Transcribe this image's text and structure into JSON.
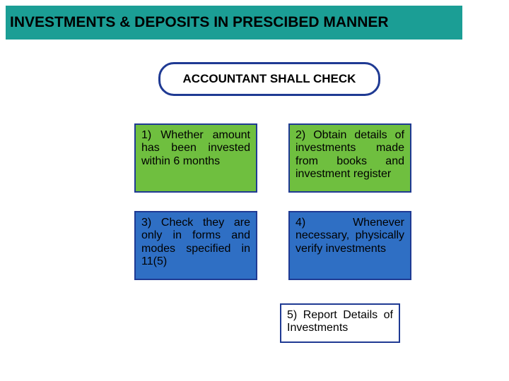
{
  "title": {
    "text": "INVESTMENTS & DEPOSITS IN PRESCIBED MANNER",
    "bg_color": "#1b9e95",
    "text_color": "#000000",
    "font_size": 21
  },
  "subtitle": {
    "text": "ACCOUNTANT SHALL CHECK",
    "border_color": "#1f3a93",
    "text_color": "#000000",
    "font_size": 17
  },
  "cells": {
    "font_size": 16,
    "items": [
      {
        "text": "1) Whether amount has been invested within 6 months",
        "bg": "#6fbf3f",
        "border": "#1f3a93"
      },
      {
        "text": "2) Obtain details of investments made from books and investment register",
        "bg": "#6fbf3f",
        "border": "#1f3a93"
      },
      {
        "text": "3) Check they are only in forms and modes specified in 11(5)",
        "bg": "#2f6fc4",
        "border": "#1f3a93"
      },
      {
        "text": "4) Whenever necessary, physically verify investments",
        "bg": "#2f6fc4",
        "border": "#1f3a93"
      }
    ]
  },
  "bottom": {
    "text": "5) Report Details of Investments",
    "bg": "#ffffff",
    "border": "#1f3a93",
    "font_size": 16
  }
}
